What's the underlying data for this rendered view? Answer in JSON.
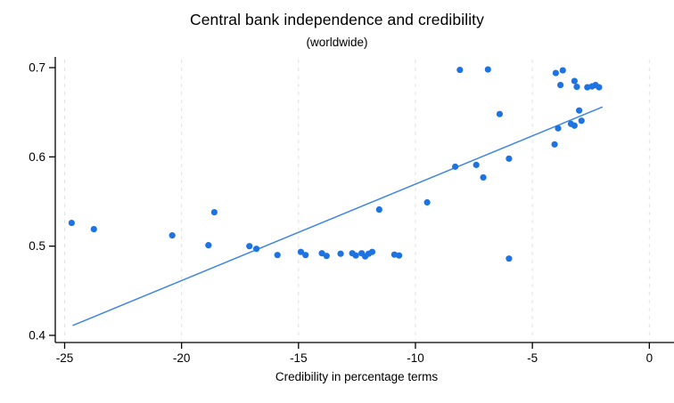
{
  "chart_data": {
    "type": "scatter",
    "title": "Central bank independence and credibility",
    "subtitle": "(worldwide)",
    "xlabel": "Credibility in percentage terms",
    "ylabel": "",
    "x_ticks": [
      -25,
      -20,
      -15,
      -10,
      -5,
      0
    ],
    "y_ticks": [
      0.4,
      0.5,
      0.6,
      0.7
    ],
    "xlim": [
      -25.4,
      0.75
    ],
    "ylim": [
      0.392,
      0.712
    ],
    "grid": "vertical-dashed",
    "legend": "none",
    "colors": {
      "point": "#1E73E1",
      "trend": "#3E86DE",
      "axis": "#000000",
      "grid": "#E2E2E2",
      "text": "#000000"
    },
    "points": [
      [
        -24.7,
        0.526
      ],
      [
        -23.75,
        0.519
      ],
      [
        -20.4,
        0.512
      ],
      [
        -18.85,
        0.501
      ],
      [
        -18.6,
        0.538
      ],
      [
        -17.1,
        0.5
      ],
      [
        -16.8,
        0.497
      ],
      [
        -15.9,
        0.49
      ],
      [
        -14.9,
        0.4935
      ],
      [
        -14.7,
        0.49
      ],
      [
        -14.0,
        0.492
      ],
      [
        -13.8,
        0.489
      ],
      [
        -13.2,
        0.4915
      ],
      [
        -12.7,
        0.492
      ],
      [
        -12.55,
        0.4895
      ],
      [
        -12.3,
        0.492
      ],
      [
        -12.15,
        0.4885
      ],
      [
        -12.0,
        0.4915
      ],
      [
        -11.85,
        0.4935
      ],
      [
        -10.9,
        0.4905
      ],
      [
        -10.7,
        0.4895
      ],
      [
        -11.55,
        0.541
      ],
      [
        -9.5,
        0.549
      ],
      [
        -8.3,
        0.589
      ],
      [
        -7.4,
        0.591
      ],
      [
        -7.1,
        0.577
      ],
      [
        -6.0,
        0.598
      ],
      [
        -6.0,
        0.486
      ],
      [
        -6.4,
        0.648
      ],
      [
        -8.1,
        0.6975
      ],
      [
        -6.9,
        0.698
      ],
      [
        -4.0,
        0.694
      ],
      [
        -3.7,
        0.697
      ],
      [
        -3.8,
        0.6805
      ],
      [
        -3.2,
        0.685
      ],
      [
        -3.1,
        0.6785
      ],
      [
        -2.65,
        0.678
      ],
      [
        -2.45,
        0.679
      ],
      [
        -2.3,
        0.6805
      ],
      [
        -2.15,
        0.678
      ],
      [
        -3.0,
        0.652
      ],
      [
        -4.05,
        0.614
      ],
      [
        -3.9,
        0.632
      ],
      [
        -3.35,
        0.637
      ],
      [
        -3.2,
        0.635
      ],
      [
        -2.9,
        0.6405
      ]
    ],
    "trendline": {
      "x1": -24.66,
      "y1": 0.411,
      "x2": -2.0,
      "y2": 0.656
    }
  }
}
